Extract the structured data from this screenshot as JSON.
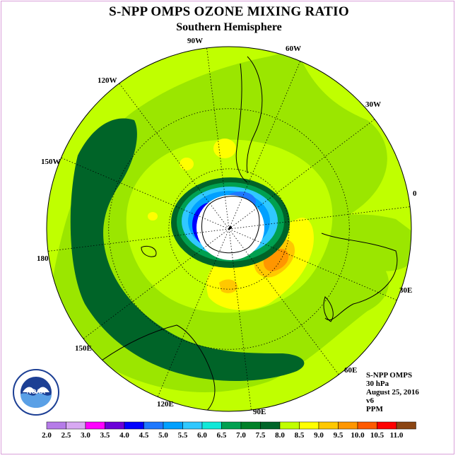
{
  "title": "S-NPP OMPS OZONE MIXING RATIO",
  "subtitle": "Southern Hemisphere",
  "longitude_labels": {
    "w90": "90W",
    "w60": "60W",
    "w120": "120W",
    "w30": "30W",
    "w150": "150W",
    "e0": "0",
    "e180": "180",
    "e30": "30E",
    "e150": "150E",
    "e60": "60E",
    "e120": "120E",
    "e90": "90E"
  },
  "info": {
    "instrument": "S-NPP OMPS",
    "level": "30 hPa",
    "date": "August 25, 2016",
    "version": "v6",
    "units": "PPM"
  },
  "logo_text": "NOAA",
  "colorbar": {
    "labels": [
      "2.0",
      "2.5",
      "3.0",
      "3.5",
      "4.0",
      "4.5",
      "5.0",
      "5.5",
      "6.0",
      "6.5",
      "7.0",
      "7.5",
      "8.0",
      "8.5",
      "9.0",
      "9.5",
      "10.0",
      "10.5",
      "11.0"
    ],
    "colors": [
      "#b57be8",
      "#d8a8f2",
      "#ff00ff",
      "#6a00d8",
      "#0000ff",
      "#1e78ff",
      "#00a0ff",
      "#30c8ff",
      "#10e8d8",
      "#00a050",
      "#008028",
      "#006428",
      "#c0ff00",
      "#ffff00",
      "#ffc800",
      "#ff9600",
      "#ff5a00",
      "#ff0000",
      "#8b4513"
    ]
  },
  "legend_colors": {
    "dark_green": "#006428",
    "mid_green": "#00a050",
    "green_yellow": "#9be600",
    "lime": "#c0ff00",
    "yellow": "#ffff00",
    "orange_yellow": "#ffc800",
    "orange": "#ff9600",
    "cyan": "#30c8ff",
    "blue": "#0000ff"
  }
}
